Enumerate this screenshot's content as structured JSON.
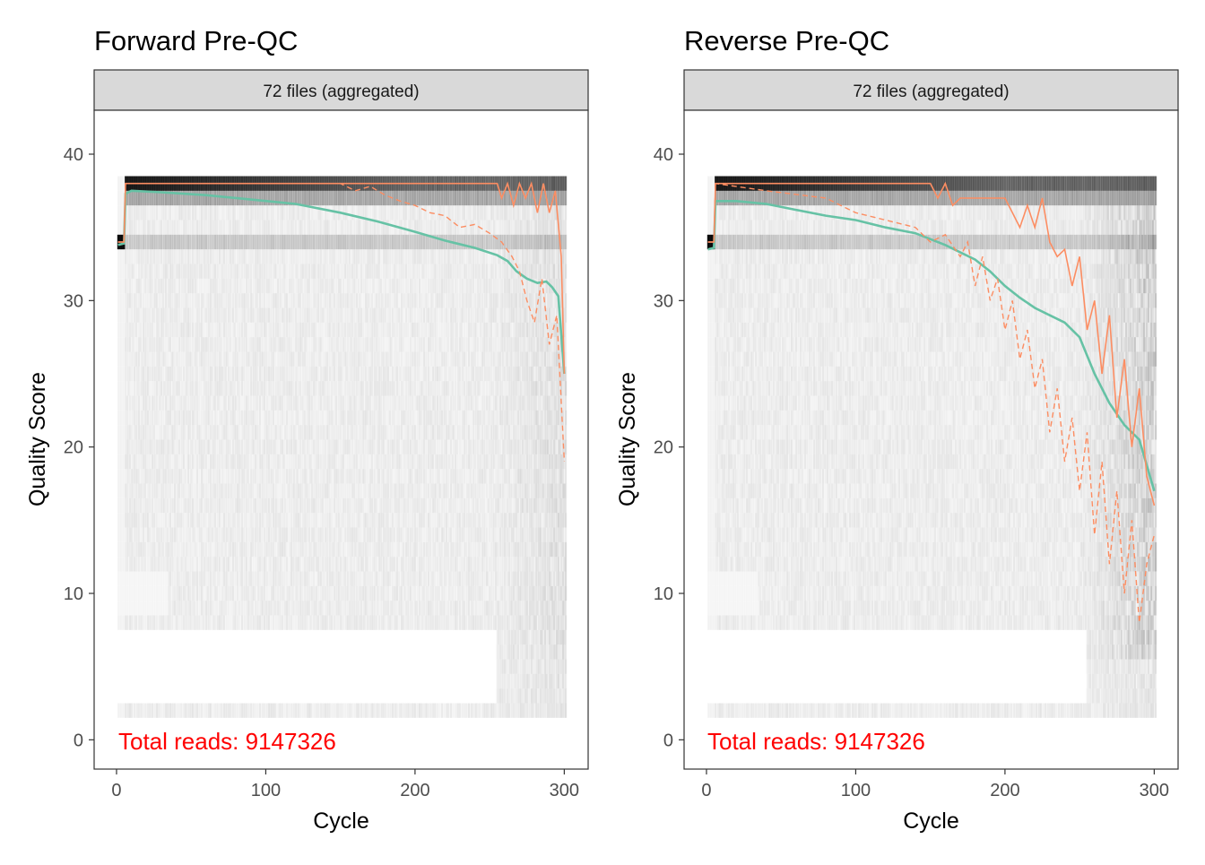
{
  "figure": {
    "background": "#ffffff"
  },
  "chart_data": [
    {
      "type": "line",
      "title": "Forward Pre-QC",
      "strip_label": "72 files (aggregated)",
      "xlabel": "Cycle",
      "ylabel": "Quality Score",
      "xlim": [
        -15,
        316
      ],
      "ylim": [
        -2,
        43
      ],
      "x_ticks": [
        0,
        100,
        200,
        300
      ],
      "y_ticks": [
        0,
        10,
        20,
        30,
        40
      ],
      "annotation": "Total reads: 9147326",
      "colors": {
        "mean": "#66c2a5",
        "quantile": "#fc8d62",
        "annotation": "#ff0000",
        "strip_fill": "#d9d9d9",
        "panel_border": "#333333"
      },
      "series": [
        {
          "role": "mean",
          "x": [
            1,
            5,
            6,
            10,
            30,
            60,
            90,
            120,
            150,
            175,
            200,
            220,
            240,
            255,
            262,
            268,
            275,
            282,
            288,
            292,
            296,
            300
          ],
          "y": [
            33.8,
            33.9,
            37.3,
            37.5,
            37.4,
            37.2,
            36.9,
            36.6,
            36.0,
            35.4,
            34.7,
            34.1,
            33.6,
            33.1,
            32.7,
            32.0,
            31.5,
            31.2,
            31.3,
            30.9,
            30.3,
            25.0
          ]
        },
        {
          "role": "median",
          "x": [
            1,
            5,
            6,
            255,
            258,
            262,
            266,
            270,
            274,
            278,
            282,
            286,
            290,
            294,
            298,
            300
          ],
          "y": [
            34.0,
            34.0,
            38.0,
            38.0,
            37.0,
            38.0,
            36.5,
            38.0,
            37.0,
            38.0,
            36.0,
            38.0,
            36.0,
            37.5,
            33.0,
            25.0
          ]
        },
        {
          "role": "q25",
          "x": [
            1,
            5,
            6,
            150,
            160,
            170,
            180,
            190,
            200,
            210,
            220,
            230,
            240,
            250,
            258,
            265,
            270,
            275,
            280,
            285,
            290,
            295,
            300
          ],
          "y": [
            34.0,
            34.0,
            38.0,
            38.0,
            37.5,
            37.8,
            37.2,
            36.8,
            36.5,
            36.0,
            35.8,
            35.0,
            35.2,
            34.6,
            34.0,
            33.0,
            32.0,
            30.0,
            28.5,
            31.5,
            27.0,
            29.0,
            19.0
          ]
        }
      ]
    },
    {
      "type": "line",
      "title": "Reverse Pre-QC",
      "strip_label": "72 files (aggregated)",
      "xlabel": "Cycle",
      "ylabel": "Quality Score",
      "xlim": [
        -15,
        316
      ],
      "ylim": [
        -2,
        43
      ],
      "x_ticks": [
        0,
        100,
        200,
        300
      ],
      "y_ticks": [
        0,
        10,
        20,
        30,
        40
      ],
      "annotation": "Total reads: 9147326",
      "colors": {
        "mean": "#66c2a5",
        "quantile": "#fc8d62",
        "annotation": "#ff0000",
        "strip_fill": "#d9d9d9",
        "panel_border": "#333333"
      },
      "series": [
        {
          "role": "mean",
          "x": [
            1,
            5,
            6,
            20,
            40,
            60,
            80,
            100,
            120,
            140,
            160,
            180,
            190,
            200,
            210,
            220,
            230,
            240,
            250,
            260,
            270,
            280,
            290,
            300
          ],
          "y": [
            33.5,
            33.6,
            36.8,
            36.8,
            36.6,
            36.2,
            35.8,
            35.5,
            35.0,
            34.6,
            33.8,
            32.8,
            32.0,
            31.0,
            30.2,
            29.5,
            29.0,
            28.5,
            27.5,
            25.0,
            23.0,
            21.5,
            20.5,
            17.0
          ]
        },
        {
          "role": "median",
          "x": [
            1,
            5,
            6,
            150,
            155,
            160,
            165,
            170,
            200,
            205,
            210,
            215,
            220,
            225,
            230,
            235,
            240,
            245,
            250,
            255,
            260,
            265,
            270,
            275,
            280,
            285,
            290,
            295,
            300
          ],
          "y": [
            34.0,
            34.0,
            38.0,
            38.0,
            37.0,
            38.0,
            36.5,
            37.0,
            37.0,
            36.0,
            35.0,
            36.5,
            35.0,
            37.0,
            34.0,
            33.0,
            33.5,
            31.0,
            33.0,
            28.0,
            30.0,
            25.0,
            29.0,
            22.0,
            26.0,
            20.0,
            24.0,
            18.0,
            16.0
          ]
        },
        {
          "role": "q25",
          "x": [
            1,
            5,
            6,
            40,
            80,
            100,
            120,
            140,
            150,
            160,
            170,
            175,
            180,
            185,
            190,
            195,
            200,
            205,
            210,
            215,
            220,
            225,
            230,
            235,
            240,
            245,
            250,
            255,
            260,
            265,
            270,
            275,
            280,
            285,
            290,
            295,
            300
          ],
          "y": [
            34.0,
            34.0,
            38.0,
            37.5,
            37.0,
            36.0,
            35.5,
            35.0,
            34.0,
            34.5,
            33.0,
            34.0,
            31.0,
            33.0,
            30.0,
            31.5,
            28.0,
            30.0,
            26.0,
            28.0,
            24.0,
            26.0,
            21.0,
            24.0,
            19.0,
            22.0,
            17.0,
            21.0,
            14.0,
            19.0,
            12.0,
            17.0,
            10.0,
            15.0,
            8.0,
            12.0,
            14.0
          ]
        }
      ]
    }
  ]
}
